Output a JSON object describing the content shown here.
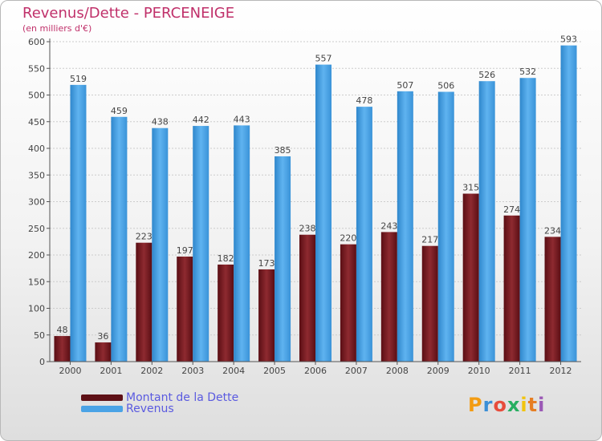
{
  "title": "Revenus/Dette - PERCENEIGE",
  "subtitle": "(en milliers d'€)",
  "legend": [
    {
      "label": "Montant de la Dette",
      "color": "#7a1e24"
    },
    {
      "label": "Revenus",
      "color": "#4aa3e6"
    }
  ],
  "logo": {
    "letters": [
      "P",
      "r",
      "o",
      "x",
      "i",
      "t",
      "i"
    ]
  },
  "colors": {
    "debt": "#7a1e24",
    "revenue": "#4aa3e6",
    "axis": "#555555",
    "grid": "#cccccc",
    "label": "#444444"
  },
  "chart_data": {
    "type": "bar",
    "title": "Revenus/Dette - PERCENEIGE",
    "ylabel": "(en milliers d'€)",
    "xlabel": "",
    "categories": [
      "2000",
      "2001",
      "2002",
      "2003",
      "2004",
      "2005",
      "2006",
      "2007",
      "2008",
      "2009",
      "2010",
      "2011",
      "2012"
    ],
    "series": [
      {
        "name": "Montant de la Dette",
        "values": [
          48,
          36,
          223,
          197,
          182,
          173,
          238,
          220,
          243,
          217,
          315,
          274,
          234
        ]
      },
      {
        "name": "Revenus",
        "values": [
          519,
          459,
          438,
          442,
          443,
          385,
          557,
          478,
          507,
          506,
          526,
          532,
          593
        ]
      }
    ],
    "ylim": [
      0,
      600
    ],
    "yticks": [
      0,
      50,
      100,
      150,
      200,
      250,
      300,
      350,
      400,
      450,
      500,
      550,
      600
    ],
    "grid": true,
    "legend_position": "bottom-left"
  }
}
